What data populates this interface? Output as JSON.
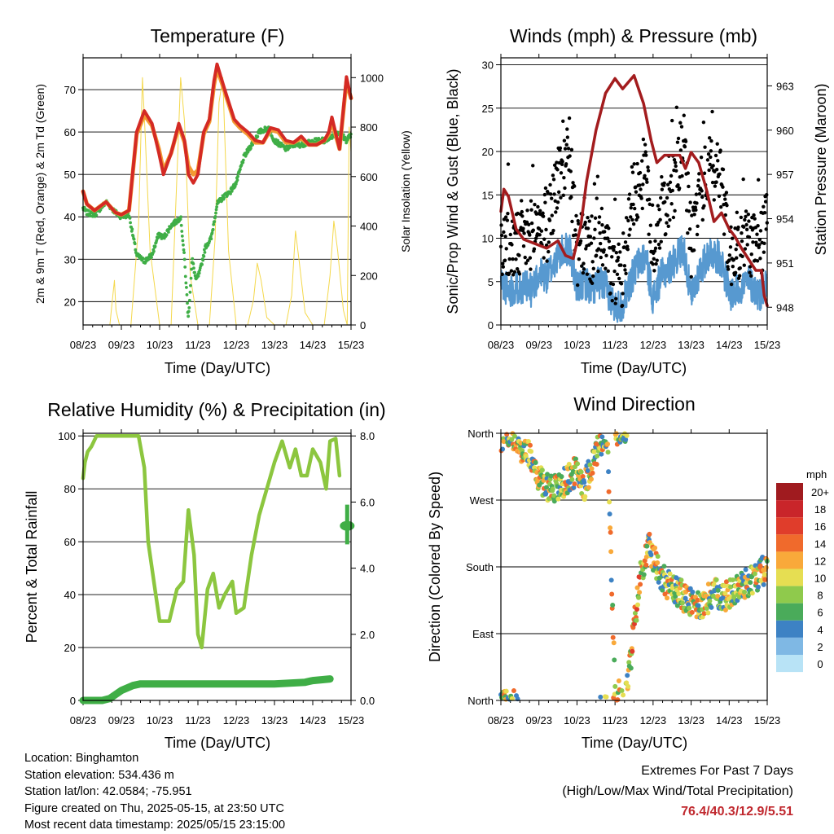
{
  "panels": {
    "temperature": {
      "title": "Temperature (F)",
      "xlabel": "Time (Day/UTC)",
      "ylabel_left": "2m & 9m T (Red, Orange) & 2m Td (Green)",
      "ylabel_right": "Solar Insolation (Yellow)"
    },
    "winds": {
      "title": "Winds (mph) & Pressure (mb)",
      "xlabel": "Time (Day/UTC)",
      "ylabel_left": "Sonic/Prop Wind & Gust (Blue, Black)",
      "ylabel_right": "Station Pressure (Maroon)"
    },
    "humidity": {
      "title": "Relative Humidity (%) & Precipitation (in)",
      "xlabel": "Time (Day/UTC)",
      "ylabel_left": "Percent & Total Rainfall"
    },
    "direction": {
      "title": "Wind Direction",
      "xlabel": "Time (Day/UTC)",
      "ylabel_left": "Direction (Colored By Speed)"
    }
  },
  "legend": {
    "unit": "mph",
    "labels": [
      "20+",
      "18",
      "16",
      "14",
      "12",
      "10",
      "8",
      "6",
      "4",
      "2",
      "0"
    ],
    "colors": [
      "#a01b1f",
      "#c9252a",
      "#e03d2b",
      "#f06a2c",
      "#f9a93a",
      "#e6de52",
      "#8fca4c",
      "#4aab5a",
      "#3d82c4",
      "#7fb8e4",
      "#b8e3f6"
    ]
  },
  "colors": {
    "t2m": "#d42a24",
    "t9m": "#f39a33",
    "td": "#3fae46",
    "solar": "#f4d84c",
    "wind": "#5799d0",
    "gust": "#000000",
    "pressure": "#a31c1e",
    "rh": "#8cc63f",
    "precip": "#3fae46"
  },
  "info": {
    "location": "Location: Binghamton",
    "elevation": "Station elevation: 534.436 m",
    "latlon": "Station lat/lon: 42.0584; -75.951",
    "created": "Figure created on Thu, 2025-05-15, at 23:50 UTC",
    "latest": "Most recent data timestamp: 2025/05/15 23:15:00"
  },
  "extremes": {
    "line1": "Extremes For Past 7 Days",
    "line2": "(High/Low/Max Wind/Total Precipitation)",
    "values": "76.4/40.3/12.9/5.51"
  },
  "chart_data": [
    {
      "type": "line",
      "title": "Temperature (F)",
      "xlabel": "Time (Day/UTC)",
      "ylabel": "2m & 9m T (Red, Orange) & 2m Td (Green)",
      "y2label": "Solar Insolation (Yellow)",
      "x_ticks": [
        "08/23",
        "09/23",
        "10/23",
        "11/23",
        "12/23",
        "13/23",
        "14/23",
        "15/23"
      ],
      "xlim": [
        0,
        7
      ],
      "ylim": [
        14.5,
        77.5
      ],
      "y_ticks": [
        20,
        30,
        40,
        50,
        60,
        70
      ],
      "y2lim": [
        0,
        1080
      ],
      "y2_ticks": [
        0,
        200,
        400,
        600,
        800,
        1000
      ],
      "grid": true,
      "series": [
        {
          "name": "2m T",
          "color": "#d42a24",
          "x": [
            0,
            0.1,
            0.3,
            0.6,
            0.85,
            1.0,
            1.2,
            1.4,
            1.6,
            1.8,
            1.98,
            2.1,
            2.3,
            2.5,
            2.65,
            2.75,
            2.88,
            3.0,
            3.15,
            3.3,
            3.42,
            3.5,
            3.7,
            3.95,
            4.1,
            4.3,
            4.5,
            4.7,
            4.9,
            5.1,
            5.3,
            5.5,
            5.7,
            5.9,
            6.1,
            6.3,
            6.42,
            6.5,
            6.7,
            6.88,
            6.95,
            7.0
          ],
          "y": [
            46,
            43,
            41.5,
            43.5,
            41,
            40.5,
            41.5,
            60,
            65,
            62,
            55,
            50,
            55,
            62,
            58,
            50,
            48,
            50,
            60,
            63,
            72,
            76,
            70,
            63,
            61.5,
            60,
            58,
            57.5,
            61,
            60.5,
            58,
            57.5,
            59,
            57,
            57,
            58,
            60,
            63.5,
            56,
            73,
            70,
            68
          ]
        },
        {
          "name": "9m T",
          "color": "#f39a33",
          "x": [
            0,
            0.1,
            0.3,
            0.6,
            0.85,
            1.0,
            1.2,
            1.4,
            1.6,
            1.8,
            1.98,
            2.1,
            2.3,
            2.5,
            2.65,
            2.75,
            2.88,
            3.0,
            3.15,
            3.3,
            3.42,
            3.5,
            3.7,
            3.95,
            4.1,
            4.3,
            4.5,
            4.7,
            4.9,
            5.1,
            5.3,
            5.5,
            5.7,
            5.9,
            6.1,
            6.3,
            6.42,
            6.5,
            6.7,
            6.88,
            6.95,
            7.0
          ],
          "y": [
            46,
            43,
            41.5,
            43.5,
            41,
            40.5,
            41.5,
            59.5,
            64,
            61.5,
            56,
            51,
            55,
            61.5,
            57.5,
            52,
            50,
            51,
            59.5,
            62.5,
            71,
            75,
            69.5,
            62.5,
            61,
            59.5,
            57.5,
            57.5,
            60.5,
            60,
            57.5,
            57.5,
            58.5,
            57,
            57,
            58,
            59.5,
            62.5,
            56,
            72,
            69.5,
            68
          ]
        },
        {
          "name": "2m Td",
          "color": "#3fae46",
          "x": [
            0,
            0.1,
            0.3,
            0.6,
            0.85,
            1.0,
            1.2,
            1.4,
            1.6,
            1.8,
            1.98,
            2.1,
            2.3,
            2.45,
            2.55,
            2.65,
            2.75,
            2.85,
            2.95,
            3.05,
            3.2,
            3.35,
            3.5,
            3.7,
            3.85,
            4.0,
            4.2,
            4.4,
            4.6,
            4.85,
            5.0,
            5.3,
            5.5,
            5.7,
            5.9,
            6.1,
            6.3,
            6.5,
            6.7,
            6.88,
            6.95,
            7.0
          ],
          "y": [
            42,
            41,
            40.5,
            43.5,
            41,
            40,
            40.5,
            31,
            29.5,
            31,
            36,
            35,
            38,
            39,
            40,
            30,
            16,
            30,
            25,
            27,
            33,
            35,
            43,
            45,
            46,
            48,
            54,
            57,
            60,
            61,
            58,
            56,
            57,
            57,
            57.5,
            58,
            58,
            59,
            60,
            58,
            59,
            59
          ]
        },
        {
          "name": "Solar",
          "color": "#f4d84c",
          "axis": "right",
          "x": [
            0,
            0.3,
            0.7,
            0.75,
            0.82,
            0.86,
            0.95,
            1.25,
            1.45,
            1.55,
            1.62,
            1.75,
            2.0,
            2.3,
            2.45,
            2.55,
            2.65,
            2.8,
            3.0,
            3.3,
            3.45,
            3.55,
            3.65,
            3.8,
            4.0,
            4.3,
            4.45,
            4.55,
            4.65,
            4.8,
            5.0,
            5.3,
            5.45,
            5.55,
            5.65,
            5.8,
            6.0,
            6.3,
            6.45,
            6.55,
            6.65,
            6.8,
            6.9,
            6.95,
            7.0
          ],
          "y": [
            0,
            0,
            0,
            80,
            180,
            60,
            0,
            0,
            400,
            1000,
            780,
            300,
            0,
            0,
            600,
            1000,
            820,
            200,
            0,
            0,
            350,
            900,
            1000,
            300,
            0,
            0,
            100,
            250,
            180,
            30,
            0,
            0,
            120,
            380,
            250,
            50,
            0,
            0,
            200,
            420,
            300,
            60,
            0,
            800,
            700
          ]
        }
      ]
    },
    {
      "type": "scatter",
      "title": "Winds (mph) & Pressure (mb)",
      "xlabel": "Time (Day/UTC)",
      "ylabel": "Sonic/Prop Wind & Gust (Blue, Black)",
      "y2label": "Station Pressure (Maroon)",
      "x_ticks": [
        "08/23",
        "09/23",
        "10/23",
        "11/23",
        "12/23",
        "13/23",
        "14/23",
        "15/23"
      ],
      "xlim": [
        0,
        7
      ],
      "ylim": [
        0,
        30.8
      ],
      "y_ticks": [
        0,
        5,
        10,
        15,
        20,
        25,
        30
      ],
      "y2lim": [
        946.8,
        964.9
      ],
      "y2_ticks": [
        948,
        951,
        954,
        957,
        960,
        963
      ],
      "grid": true,
      "series": [
        {
          "name": "Wind",
          "color": "#5799d0",
          "x": [
            0,
            0.2,
            0.5,
            0.8,
            1.0,
            1.2,
            1.5,
            1.8,
            2.0,
            2.2,
            2.4,
            2.6,
            2.8,
            3.0,
            3.2,
            3.4,
            3.6,
            3.8,
            4.0,
            4.2,
            4.5,
            4.8,
            5.0,
            5.2,
            5.5,
            5.8,
            6.0,
            6.2,
            6.5,
            6.8,
            7.0
          ],
          "y": [
            5,
            4,
            4.5,
            4,
            6,
            5.5,
            8,
            9,
            4,
            5,
            4,
            5,
            4,
            2,
            2.5,
            5,
            7,
            8,
            3,
            5.5,
            7,
            9,
            3,
            6,
            8.5,
            7.5,
            3.5,
            4,
            5,
            3.5,
            5
          ]
        },
        {
          "name": "Gust",
          "color": "#000000",
          "x": [
            0,
            0.2,
            0.5,
            0.8,
            1.0,
            1.2,
            1.5,
            1.8,
            2.0,
            2.2,
            2.4,
            2.6,
            2.8,
            3.0,
            3.2,
            3.4,
            3.6,
            3.8,
            4.0,
            4.2,
            4.5,
            4.8,
            5.0,
            5.2,
            5.5,
            5.8,
            6.0,
            6.2,
            6.5,
            6.8,
            7.0
          ],
          "y": [
            10,
            9,
            9,
            10.5,
            12,
            11,
            17,
            20,
            8,
            9.5,
            8.5,
            10,
            8,
            5,
            6,
            14,
            16,
            18,
            8,
            13,
            15,
            21,
            9,
            15,
            18,
            17.5,
            8,
            9,
            10,
            8,
            13
          ]
        },
        {
          "name": "Pressure",
          "color": "#a31c1e",
          "axis": "right",
          "x": [
            0,
            0.08,
            0.2,
            0.4,
            0.6,
            0.9,
            1.2,
            1.5,
            1.7,
            1.9,
            2.1,
            2.25,
            2.5,
            2.75,
            3.0,
            3.2,
            3.5,
            3.75,
            3.95,
            4.1,
            4.3,
            4.55,
            4.7,
            4.85,
            5.0,
            5.2,
            5.4,
            5.6,
            5.8,
            6.0,
            6.15,
            6.3,
            6.5,
            6.7,
            6.85,
            6.92,
            7.0
          ],
          "y": [
            954.5,
            956,
            955.5,
            953.3,
            952.6,
            952.3,
            952.0,
            952.5,
            951.5,
            951.3,
            953.5,
            956.5,
            960,
            962.5,
            963.5,
            962.8,
            963.7,
            961.8,
            959.3,
            957.8,
            958.3,
            958.3,
            958.3,
            957.4,
            958.5,
            957.8,
            956,
            953.8,
            954.4,
            953.3,
            952.8,
            952.1,
            951.3,
            950.5,
            950.5,
            948.8,
            948.1
          ]
        }
      ]
    },
    {
      "type": "line",
      "title": "Relative Humidity (%) & Precipitation (in)",
      "xlabel": "Time (Day/UTC)",
      "ylabel": "Percent & Total Rainfall",
      "x_ticks": [
        "08/23",
        "09/23",
        "10/23",
        "11/23",
        "12/23",
        "13/23",
        "14/23",
        "15/23"
      ],
      "xlim": [
        0,
        7
      ],
      "ylim": [
        0,
        101
      ],
      "y_ticks": [
        0,
        20,
        40,
        60,
        80,
        100
      ],
      "y2lim": [
        0,
        8.08
      ],
      "y2_ticks": [
        "0.0",
        "2.0",
        "4.0",
        "6.0",
        "8.0"
      ],
      "grid": true,
      "series": [
        {
          "name": "RH",
          "color": "#8cc63f",
          "x": [
            0,
            0.05,
            0.12,
            0.22,
            0.35,
            0.5,
            0.65,
            0.8,
            1.0,
            1.2,
            1.45,
            1.6,
            1.7,
            1.85,
            2.0,
            2.1,
            2.25,
            2.45,
            2.62,
            2.75,
            2.9,
            3.0,
            3.1,
            3.25,
            3.4,
            3.55,
            3.7,
            3.9,
            4.0,
            4.2,
            4.4,
            4.6,
            4.8,
            5.0,
            5.2,
            5.4,
            5.55,
            5.7,
            5.85,
            6.0,
            6.2,
            6.35,
            6.45,
            6.6,
            6.7
          ],
          "y": [
            84,
            90,
            94,
            96,
            100,
            100,
            100,
            100,
            100,
            100,
            100,
            88,
            60,
            45,
            30,
            30,
            30,
            42,
            45,
            72,
            55,
            25,
            20,
            42,
            48,
            35,
            40,
            45,
            33,
            35,
            55,
            70,
            80,
            90,
            98,
            88,
            95,
            85,
            85,
            95,
            90,
            80,
            98,
            99,
            85
          ]
        },
        {
          "name": "Precip",
          "color": "#3fae46",
          "axis": "right",
          "x": [
            0,
            0.5,
            0.7,
            1.0,
            1.3,
            1.5,
            2.0,
            3.0,
            4.0,
            5.0,
            5.8,
            6.0,
            6.45,
            6.5,
            6.55,
            6.9,
            7.0
          ],
          "y": [
            0.0,
            0.0,
            0.06,
            0.3,
            0.45,
            0.5,
            0.5,
            0.5,
            0.5,
            0.5,
            0.55,
            0.6,
            0.65,
            0.65,
            0.67,
            5.25,
            5.51
          ]
        }
      ]
    },
    {
      "type": "scatter",
      "title": "Wind Direction",
      "xlabel": "Time (Day/UTC)",
      "ylabel": "Direction (Colored By Speed)",
      "x_ticks": [
        "08/23",
        "09/23",
        "10/23",
        "11/23",
        "12/23",
        "13/23",
        "14/23",
        "15/23"
      ],
      "xlim": [
        0,
        7
      ],
      "y_ticks": [
        "North",
        "West",
        "South",
        "East",
        "North"
      ],
      "ylim": [
        0,
        360
      ],
      "grid": true,
      "series": [
        {
          "name": "Direction",
          "x": [
            0,
            0.2,
            0.4,
            0.6,
            0.8,
            1.0,
            1.2,
            1.5,
            1.8,
            2.0,
            2.2,
            2.4,
            2.6,
            2.8,
            3.0,
            3.3,
            3.5,
            3.7,
            3.9,
            4.1,
            4.4,
            4.7,
            5.0,
            5.3,
            5.6,
            5.9,
            6.2,
            6.5,
            6.8,
            7.0
          ],
          "y": [
            355,
            350,
            345,
            335,
            330,
            300,
            290,
            285,
            300,
            310,
            290,
            320,
            345,
            350,
            10,
            5,
            100,
            180,
            205,
            180,
            155,
            145,
            130,
            130,
            145,
            140,
            150,
            160,
            170,
            180
          ]
        }
      ]
    }
  ]
}
